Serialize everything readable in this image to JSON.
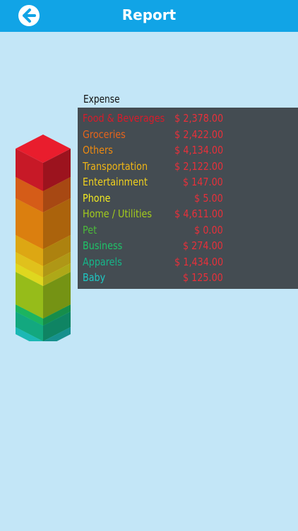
{
  "header": {
    "title": "Report",
    "back_icon": "back-arrow-icon",
    "bar_color": "#11a4e6"
  },
  "report": {
    "section_label": "Expense",
    "amount_color": "#e8303a",
    "items": [
      {
        "category": "Food & Beverages",
        "amount": "$ 2,378.00",
        "color": "#d81b2a"
      },
      {
        "category": "Groceries",
        "amount": "$ 2,422.00",
        "color": "#e8641a"
      },
      {
        "category": "Others",
        "amount": "$ 4,134.00",
        "color": "#ee8a10"
      },
      {
        "category": "Transportation",
        "amount": "$ 2,122.00",
        "color": "#f0b515"
      },
      {
        "category": "Entertainment",
        "amount": "$ 147.00",
        "color": "#f3d21e"
      },
      {
        "category": "Phone",
        "amount": "$ 5.00",
        "color": "#f2ea22"
      },
      {
        "category": "Home / Utilities",
        "amount": "$ 4,611.00",
        "color": "#a3cc1c"
      },
      {
        "category": "Pet",
        "amount": "$ 0.00",
        "color": "#4cba3a"
      },
      {
        "category": "Business",
        "amount": "$ 274.00",
        "color": "#1ec468"
      },
      {
        "category": "Apparels",
        "amount": "$ 1,434.00",
        "color": "#15b78a"
      },
      {
        "category": "Baby",
        "amount": "$ 125.00",
        "color": "#1ec8c4"
      }
    ]
  }
}
